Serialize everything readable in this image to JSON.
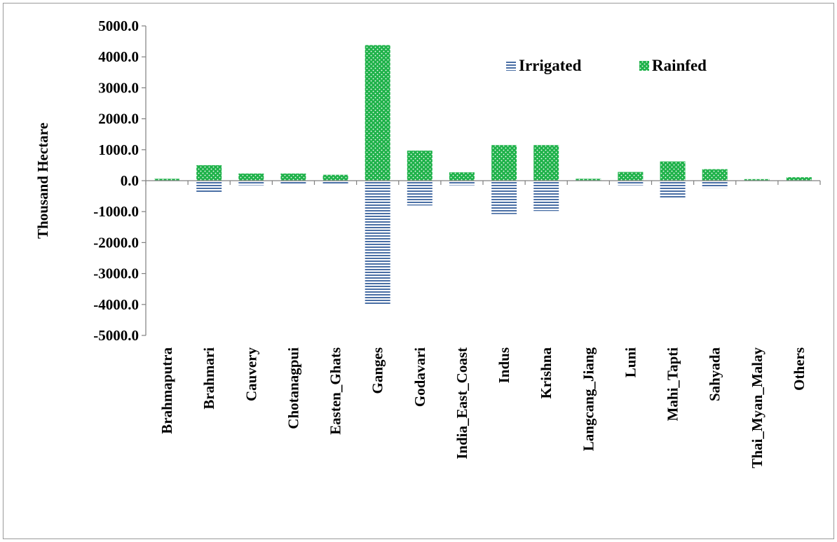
{
  "chart_data": {
    "type": "bar",
    "stacked": true,
    "title": "",
    "xlabel": "",
    "ylabel": "Thousand  Hectare",
    "ylim": [
      -5000,
      5000
    ],
    "yticks": [
      5000,
      4000,
      3000,
      2000,
      1000,
      0,
      -1000,
      -2000,
      -3000,
      -4000,
      -5000
    ],
    "ytick_labels": [
      "5000.0",
      "4000.0",
      "3000.0",
      "2000.0",
      "1000.0",
      "0.0",
      "-1000.0",
      "-2000.0",
      "-3000.0",
      "-4000.0",
      "-5000.0"
    ],
    "grid": false,
    "legend": "top-right",
    "categories": [
      "Brahmaputra",
      "Brahmari",
      "Cauvery",
      "Chotanagpui",
      "Easten_Ghats",
      "Ganges",
      "Godavari",
      "India_East_Coast",
      "Indus",
      "Krishna",
      "Langcang_Jiang",
      "Luni",
      "Mahi_Tapti",
      "Sahyada",
      "Thai_Myan_Malay",
      "Others"
    ],
    "series": [
      {
        "name": "Irrigated",
        "color": "#4a6fa5",
        "pattern": "horizontal-stripes",
        "values": [
          -20,
          -370,
          -150,
          -100,
          -90,
          -4000,
          -800,
          -150,
          -1080,
          -980,
          -20,
          -150,
          -550,
          -230,
          -20,
          -20
        ]
      },
      {
        "name": "Rainfed",
        "color": "#1fb24a",
        "pattern": "dotted",
        "values": [
          60,
          500,
          230,
          230,
          190,
          4380,
          970,
          270,
          1150,
          1150,
          60,
          280,
          620,
          370,
          50,
          110
        ]
      }
    ]
  }
}
